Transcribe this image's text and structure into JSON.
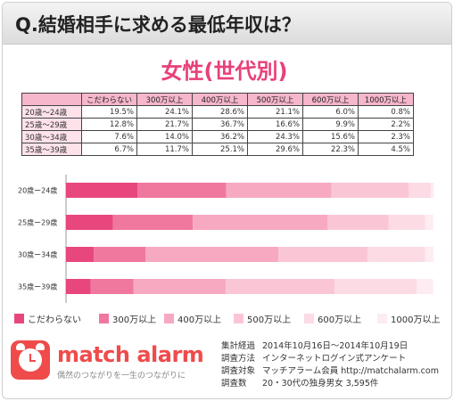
{
  "header": {
    "title": "Q.結婚相手に求める最低年収は？"
  },
  "subtitle": "女性(世代別)",
  "table": {
    "columns": [
      "こだわらない",
      "300万以上",
      "400万以上",
      "500万以上",
      "600万以上",
      "1000万以上"
    ],
    "rows": [
      {
        "label": "20歳〜24歳",
        "cells": [
          "19.5%",
          "24.1%",
          "28.6%",
          "21.1%",
          "6.0%",
          "0.8%"
        ]
      },
      {
        "label": "25歳〜29歳",
        "cells": [
          "12.8%",
          "21.7%",
          "36.7%",
          "16.6%",
          "9.9%",
          "2.2%"
        ]
      },
      {
        "label": "30歳〜34歳",
        "cells": [
          "7.6%",
          "14.0%",
          "36.2%",
          "24.3%",
          "15.6%",
          "2.3%"
        ]
      },
      {
        "label": "35歳〜39歳",
        "cells": [
          "6.7%",
          "11.7%",
          "25.1%",
          "29.6%",
          "22.3%",
          "4.5%"
        ]
      }
    ]
  },
  "chart_data": {
    "type": "bar",
    "orientation": "horizontal-stacked",
    "categories": [
      "20歳ー24歳",
      "25歳ー29歳",
      "30歳ー34歳",
      "35歳ー39歳"
    ],
    "series": [
      {
        "name": "こだわらない",
        "values": [
          19.5,
          12.8,
          7.6,
          6.7
        ],
        "color": "#e8477e"
      },
      {
        "name": "300万以上",
        "values": [
          24.1,
          21.7,
          14.0,
          11.7
        ],
        "color": "#f0789f"
      },
      {
        "name": "400万以上",
        "values": [
          28.6,
          36.7,
          36.2,
          25.1
        ],
        "color": "#f7a9c1"
      },
      {
        "name": "500万以上",
        "values": [
          21.1,
          16.6,
          24.3,
          29.6
        ],
        "color": "#fac6d6"
      },
      {
        "name": "600万以上",
        "values": [
          6.0,
          9.9,
          15.6,
          22.3
        ],
        "color": "#fcdbe5"
      },
      {
        "name": "1000万以上",
        "values": [
          0.8,
          2.2,
          2.3,
          4.5
        ],
        "color": "#fdecf1"
      }
    ],
    "xlim": [
      0,
      100
    ],
    "legend": "bottom",
    "grid": false
  },
  "footer": {
    "brand": "match alarm",
    "tagline": "偶然のつながりを一生のつながりに",
    "info": [
      {
        "key": "集計経過",
        "value": "2014年10月16日〜2014年10月19日"
      },
      {
        "key": "調査方法",
        "value": "インターネットログイン式アンケート"
      },
      {
        "key": "調査対象",
        "value": "マッチアラーム会員 http://matchalarm.com"
      },
      {
        "key": "調査数",
        "value": "20・30代の独身男女 3,595件"
      }
    ]
  }
}
